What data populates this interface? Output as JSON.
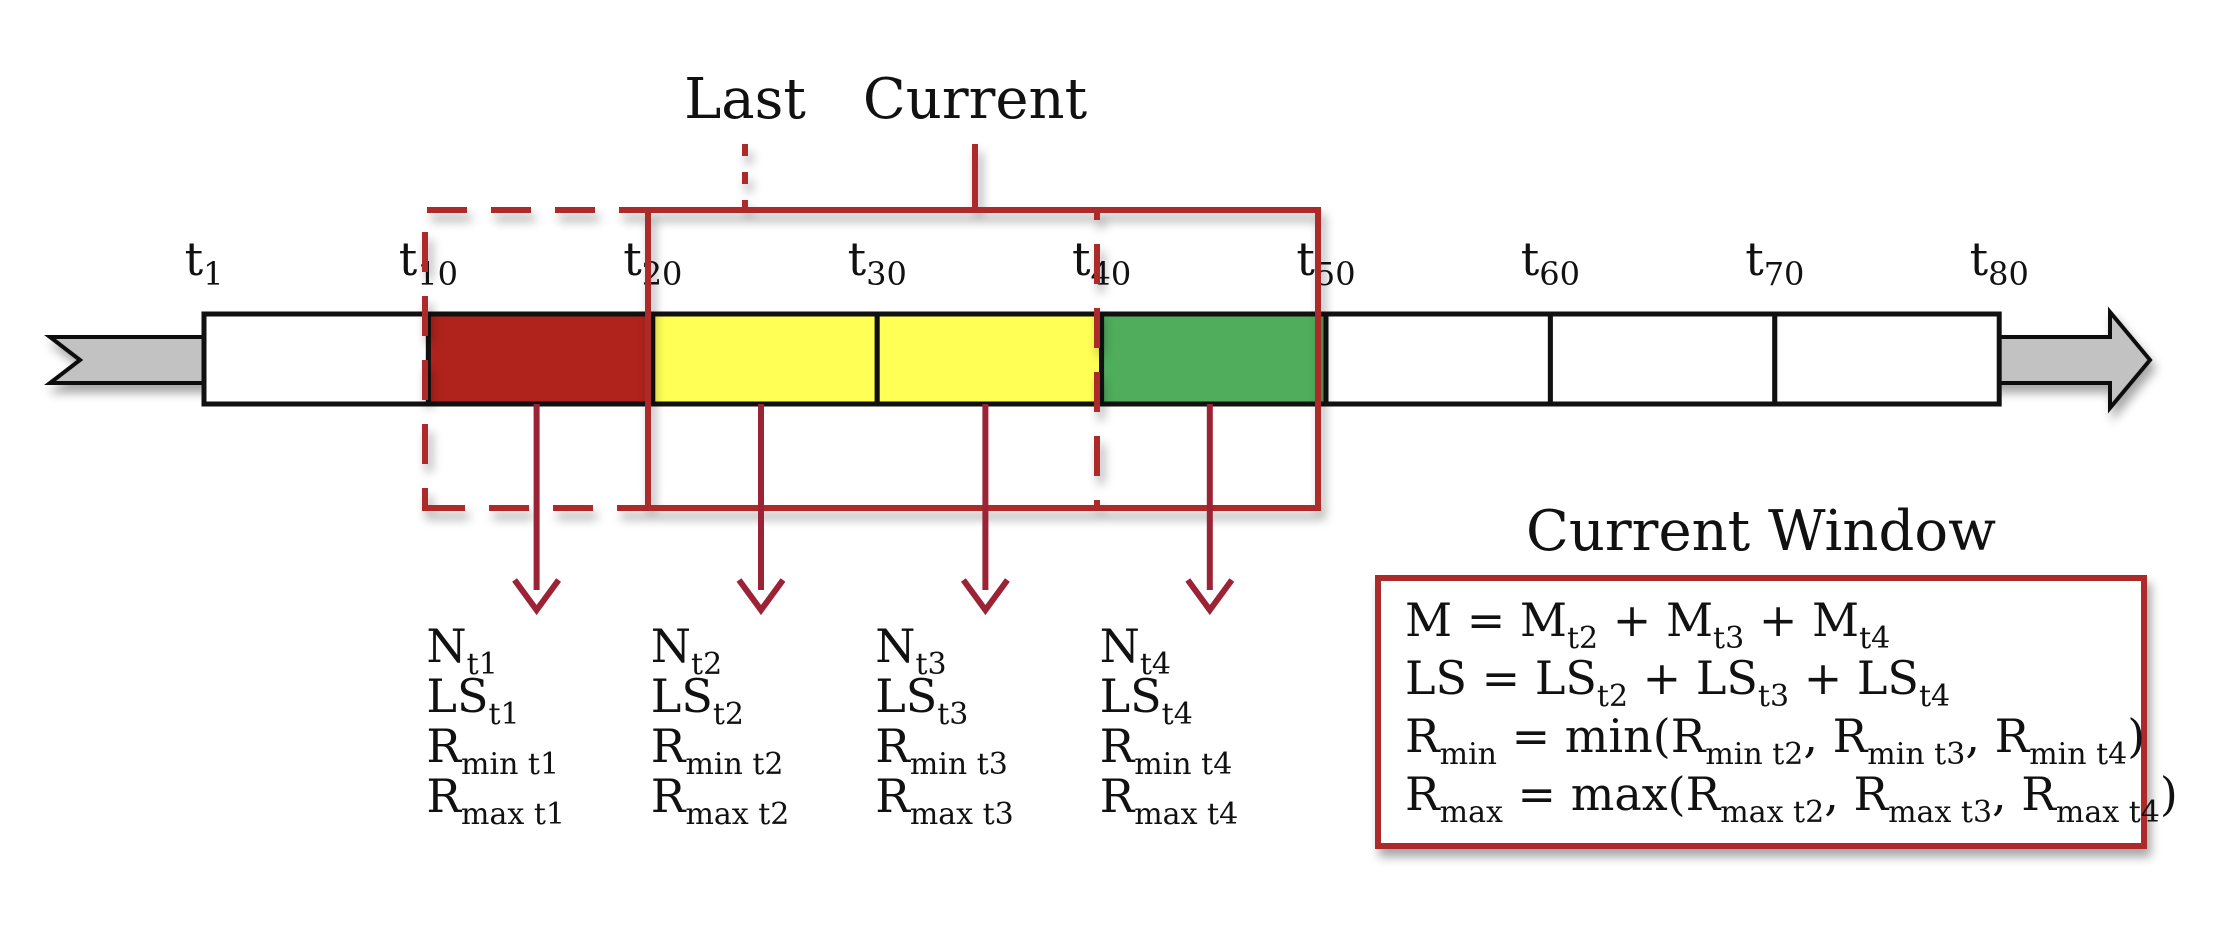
{
  "labels": {
    "last": "Last",
    "current": "Current",
    "current_window": "Current Window"
  },
  "ticks": [
    {
      "base": "t",
      "sub": "1"
    },
    {
      "base": "t",
      "sub": "10"
    },
    {
      "base": "t",
      "sub": "20"
    },
    {
      "base": "t",
      "sub": "30"
    },
    {
      "base": "t",
      "sub": "40"
    },
    {
      "base": "t",
      "sub": "50"
    },
    {
      "base": "t",
      "sub": "60"
    },
    {
      "base": "t",
      "sub": "70"
    },
    {
      "base": "t",
      "sub": "80"
    }
  ],
  "cells": [
    {
      "fill": "#ffffff"
    },
    {
      "fill": "#b0221c"
    },
    {
      "fill": "#ffff55"
    },
    {
      "fill": "#ffff55"
    },
    {
      "fill": "#4fad5b"
    },
    {
      "fill": "#ffffff"
    },
    {
      "fill": "#ffffff"
    },
    {
      "fill": "#ffffff"
    }
  ],
  "stat_groups": [
    {
      "lines": [
        [
          {
            "t": "N"
          },
          {
            "t": "t1",
            "sub": true
          }
        ],
        [
          {
            "t": "LS"
          },
          {
            "t": "t1",
            "sub": true
          }
        ],
        [
          {
            "t": "R"
          },
          {
            "t": "min t1",
            "sub": true
          }
        ],
        [
          {
            "t": "R"
          },
          {
            "t": "max t1",
            "sub": true
          }
        ]
      ]
    },
    {
      "lines": [
        [
          {
            "t": "N"
          },
          {
            "t": "t2",
            "sub": true
          }
        ],
        [
          {
            "t": "LS"
          },
          {
            "t": "t2",
            "sub": true
          }
        ],
        [
          {
            "t": "R"
          },
          {
            "t": "min t2",
            "sub": true
          }
        ],
        [
          {
            "t": "R"
          },
          {
            "t": "max t2",
            "sub": true
          }
        ]
      ]
    },
    {
      "lines": [
        [
          {
            "t": "N"
          },
          {
            "t": "t3",
            "sub": true
          }
        ],
        [
          {
            "t": "LS"
          },
          {
            "t": "t3",
            "sub": true
          }
        ],
        [
          {
            "t": "R"
          },
          {
            "t": "min t3",
            "sub": true
          }
        ],
        [
          {
            "t": "R"
          },
          {
            "t": "max t3",
            "sub": true
          }
        ]
      ]
    },
    {
      "lines": [
        [
          {
            "t": "N"
          },
          {
            "t": "t4",
            "sub": true
          }
        ],
        [
          {
            "t": "LS"
          },
          {
            "t": "t4",
            "sub": true
          }
        ],
        [
          {
            "t": "R"
          },
          {
            "t": "min t4",
            "sub": true
          }
        ],
        [
          {
            "t": "R"
          },
          {
            "t": "max t4",
            "sub": true
          }
        ]
      ]
    }
  ],
  "formulas": [
    [
      {
        "t": "M = M"
      },
      {
        "t": "t2",
        "sub": true
      },
      {
        "t": " + M"
      },
      {
        "t": "t3",
        "sub": true
      },
      {
        "t": "  + M"
      },
      {
        "t": "t4",
        "sub": true
      }
    ],
    [
      {
        "t": "LS = LS"
      },
      {
        "t": "t2",
        "sub": true
      },
      {
        "t": " + LS"
      },
      {
        "t": "t3",
        "sub": true
      },
      {
        "t": " + LS"
      },
      {
        "t": "t4",
        "sub": true
      }
    ],
    [
      {
        "t": "R"
      },
      {
        "t": "min",
        "sub": true
      },
      {
        "t": " = min(R"
      },
      {
        "t": "min t2",
        "sub": true
      },
      {
        "t": ", R"
      },
      {
        "t": "min t3",
        "sub": true
      },
      {
        "t": ", R"
      },
      {
        "t": "min t4",
        "sub": true
      },
      {
        "t": ")"
      }
    ],
    [
      {
        "t": "R"
      },
      {
        "t": "max",
        "sub": true
      },
      {
        "t": " = max(R"
      },
      {
        "t": "max t2",
        "sub": true
      },
      {
        "t": ", R"
      },
      {
        "t": "max t3",
        "sub": true
      },
      {
        "t": ", R"
      },
      {
        "t": "max t4",
        "sub": true
      },
      {
        "t": ")"
      }
    ]
  ],
  "colors": {
    "window_border": "#ad2a2a",
    "arrow_color": "#9b2335",
    "timeline_arrow_fill": "#c2c2c2",
    "cell_border": "#111111"
  }
}
